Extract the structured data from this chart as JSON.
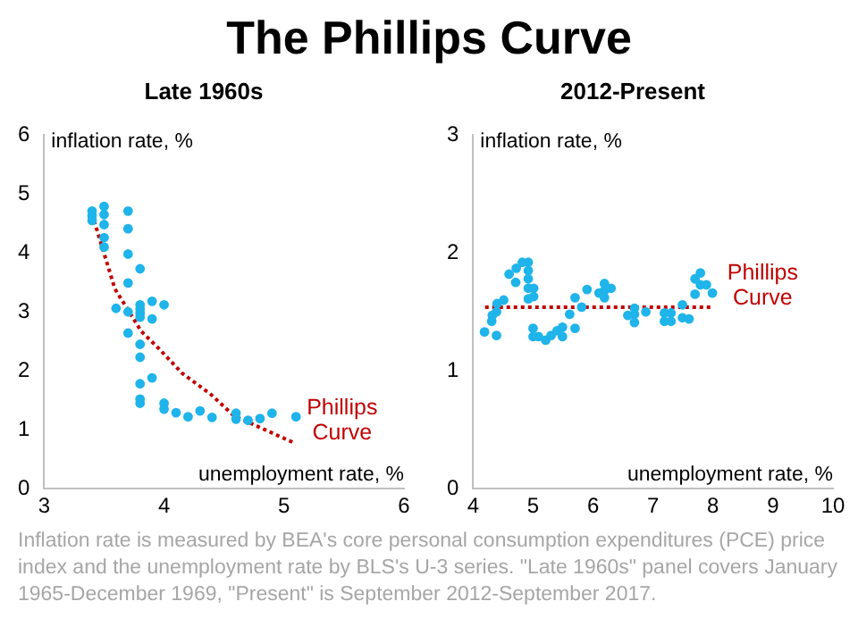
{
  "chart_data": [
    {
      "type": "scatter",
      "title": "The Phillips Curve",
      "subtitle": "Late 1960s",
      "xlabel": "unemployment rate, %",
      "ylabel": "inflation rate, %",
      "xlim": [
        3,
        6
      ],
      "xticks": [
        3,
        4,
        5,
        6
      ],
      "ylim": [
        0,
        6
      ],
      "yticks": [
        0,
        1,
        2,
        3,
        4,
        5,
        6
      ],
      "grid": false,
      "legend": false,
      "marker": "circle",
      "series": [
        {
          "type": "scatter",
          "color": "#1fb4ea",
          "x": [
            3.4,
            3.4,
            3.4,
            3.5,
            3.5,
            3.5,
            3.5,
            3.5,
            3.7,
            3.7,
            3.7,
            3.7,
            3.8,
            3.6,
            3.7,
            3.7,
            3.8,
            3.8,
            3.8,
            3.8,
            3.9,
            4.0,
            3.9,
            3.8,
            3.8,
            3.9,
            3.8,
            3.8,
            3.8,
            4.0,
            4.0,
            4.1,
            4.2,
            4.3,
            4.4,
            4.6,
            4.6,
            4.7,
            4.8,
            4.9,
            5.1
          ],
          "values": [
            4.71,
            4.63,
            4.55,
            4.79,
            4.65,
            4.48,
            4.26,
            4.1,
            4.71,
            4.41,
            3.98,
            3.49,
            3.73,
            3.06,
            3.0,
            2.64,
            3.12,
            3.05,
            2.98,
            2.91,
            3.18,
            3.12,
            2.88,
            2.45,
            2.23,
            1.88,
            1.78,
            1.52,
            1.45,
            1.45,
            1.35,
            1.29,
            1.22,
            1.32,
            1.21,
            1.28,
            1.18,
            1.16,
            1.19,
            1.28,
            1.22
          ]
        },
        {
          "type": "line",
          "name": "Phillips Curve",
          "color": "#c00000",
          "line_style": "dotted",
          "marker": "none",
          "x": [
            3.4,
            3.59,
            3.81,
            3.96,
            4.15,
            4.39,
            4.58,
            5.07
          ],
          "values": [
            4.66,
            3.39,
            2.67,
            2.37,
            1.96,
            1.6,
            1.24,
            0.79
          ]
        }
      ],
      "annotations": [
        "Inflation rate is measured by BEA's  core personal consumption expenditures (PCE) price index and the unemployment rate by BLS's U-3 series. \"Late 1960s\" panel covers January 1965-December 1969, \"Present\" is September 2012-September 2017."
      ]
    },
    {
      "type": "scatter",
      "subtitle": "2012-Present",
      "xlabel": "unemployment rate, %",
      "ylabel": "inflation rate, %",
      "xlim": [
        4,
        10
      ],
      "xticks": [
        4,
        5,
        6,
        7,
        8,
        9,
        10
      ],
      "ylim": [
        0,
        3
      ],
      "yticks": [
        0,
        1,
        2,
        3
      ],
      "grid": false,
      "legend": false,
      "marker": "circle",
      "series": [
        {
          "type": "scatter",
          "color": "#1fb4ea",
          "x": [
            4.19,
            4.31,
            4.32,
            4.39,
            4.39,
            4.4,
            4.51,
            4.6,
            4.71,
            4.72,
            4.82,
            4.92,
            4.92,
            4.92,
            4.92,
            5.01,
            4.92,
            5.01,
            5.0,
            5.0,
            5.09,
            5.21,
            5.3,
            5.4,
            5.49,
            5.49,
            5.61,
            5.7,
            5.7,
            5.81,
            5.9,
            6.1,
            6.19,
            6.19,
            6.19,
            6.3,
            6.58,
            6.69,
            6.69,
            6.69,
            6.88,
            7.19,
            7.19,
            7.3,
            7.3,
            7.49,
            7.49,
            7.6,
            7.7,
            7.7,
            7.79,
            7.79,
            7.89,
            7.99
          ],
          "values": [
            1.33,
            1.42,
            1.47,
            1.3,
            1.5,
            1.57,
            1.6,
            1.82,
            1.75,
            1.87,
            1.92,
            1.92,
            1.85,
            1.78,
            1.7,
            1.7,
            1.61,
            1.63,
            1.36,
            1.29,
            1.29,
            1.26,
            1.3,
            1.34,
            1.37,
            1.29,
            1.48,
            1.36,
            1.62,
            1.54,
            1.69,
            1.66,
            1.74,
            1.68,
            1.62,
            1.7,
            1.47,
            1.53,
            1.48,
            1.41,
            1.5,
            1.49,
            1.42,
            1.49,
            1.42,
            1.56,
            1.45,
            1.44,
            1.65,
            1.78,
            1.83,
            1.73,
            1.73,
            1.66
          ]
        },
        {
          "type": "line",
          "name": "Phillips Curve",
          "color": "#c00000",
          "line_style": "dotted",
          "marker": "none",
          "x": [
            4.2,
            8.0
          ],
          "values": [
            1.54,
            1.54
          ]
        }
      ]
    }
  ]
}
